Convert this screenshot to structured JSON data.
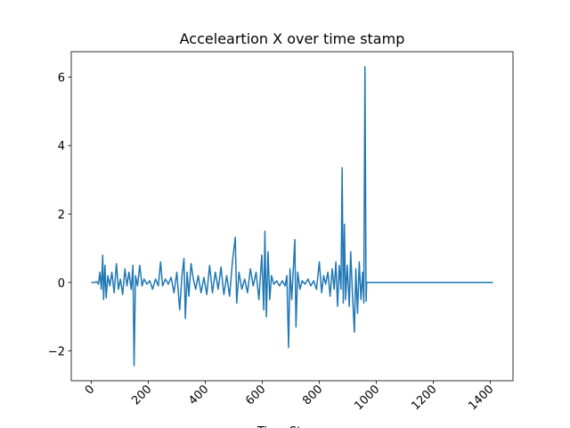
{
  "chart_data": {
    "type": "line",
    "title": "Acceleartion X over time stamp",
    "xlabel": "Time Stamp",
    "x": [
      0,
      10,
      20,
      25,
      30,
      35,
      40,
      43,
      48,
      52,
      58,
      65,
      72,
      80,
      88,
      95,
      102,
      110,
      118,
      125,
      132,
      140,
      146,
      150,
      155,
      162,
      170,
      178,
      185,
      195,
      205,
      215,
      225,
      235,
      243,
      250,
      260,
      270,
      280,
      290,
      300,
      310,
      318,
      325,
      330,
      336,
      342,
      350,
      358,
      366,
      375,
      385,
      395,
      405,
      415,
      425,
      435,
      445,
      455,
      465,
      475,
      485,
      495,
      505,
      510,
      518,
      528,
      538,
      548,
      558,
      568,
      578,
      588,
      598,
      605,
      609,
      614,
      620,
      626,
      632,
      640,
      650,
      660,
      670,
      680,
      686,
      692,
      697,
      703,
      710,
      714,
      718,
      724,
      732,
      740,
      750,
      760,
      770,
      780,
      790,
      800,
      808,
      815,
      822,
      830,
      838,
      845,
      852,
      858,
      864,
      870,
      876,
      880,
      884,
      888,
      892,
      898,
      905,
      910,
      916,
      923,
      928,
      934,
      940,
      946,
      952,
      956,
      960,
      964,
      966,
      1409
    ],
    "values": [
      0,
      0,
      0.02,
      -0.05,
      0.3,
      -0.2,
      0.8,
      -0.5,
      0.5,
      -0.45,
      0.2,
      -0.1,
      0.3,
      -0.3,
      0.55,
      -0.2,
      0.1,
      -0.35,
      0.4,
      -0.1,
      0.3,
      -0.2,
      0.5,
      -2.43,
      0.2,
      -0.1,
      0.5,
      -0.1,
      0.1,
      -0.05,
      0.05,
      -0.2,
      0.1,
      -0.1,
      0.6,
      -0.1,
      0.1,
      -0.05,
      0.15,
      -0.3,
      0.3,
      -0.8,
      0.2,
      0.7,
      -1.05,
      0.3,
      -0.4,
      0.55,
      0.1,
      -0.2,
      0.2,
      -0.3,
      0.15,
      -0.35,
      0.5,
      -0.3,
      0.3,
      -0.2,
      0.45,
      -0.35,
      0.2,
      -0.4,
      0.6,
      1.32,
      -0.6,
      0.3,
      -0.2,
      0.1,
      -0.3,
      0.4,
      -0.1,
      0.3,
      -0.5,
      0.8,
      -0.8,
      1.5,
      -1.0,
      0.9,
      -0.5,
      0.2,
      -0.05,
      0.05,
      -0.1,
      0.05,
      -0.1,
      0.2,
      -1.9,
      0.4,
      -0.5,
      0.6,
      1.25,
      -1.3,
      0.3,
      -0.2,
      0.05,
      -0.05,
      0.1,
      -0.1,
      0.05,
      -0.2,
      0.6,
      -0.3,
      0.2,
      -0.05,
      0.3,
      -0.4,
      0.4,
      -0.2,
      0.6,
      -0.7,
      0.5,
      -0.2,
      3.35,
      -0.6,
      1.7,
      -0.5,
      0.5,
      -0.7,
      0.9,
      -0.3,
      -1.45,
      0.4,
      -0.9,
      0.6,
      -0.5,
      0.3,
      -0.6,
      6.3,
      -0.55,
      0,
      0
    ],
    "color": "#1f77b4",
    "xlim": [
      -70.45,
      1479.45
    ],
    "xticks": [
      0,
      200,
      400,
      600,
      800,
      1000,
      1200,
      1400
    ],
    "ylim": [
      -2.87,
      6.74
    ],
    "yticks": [
      {
        "value": -2,
        "label": "−2"
      },
      0,
      2,
      4,
      6
    ]
  }
}
